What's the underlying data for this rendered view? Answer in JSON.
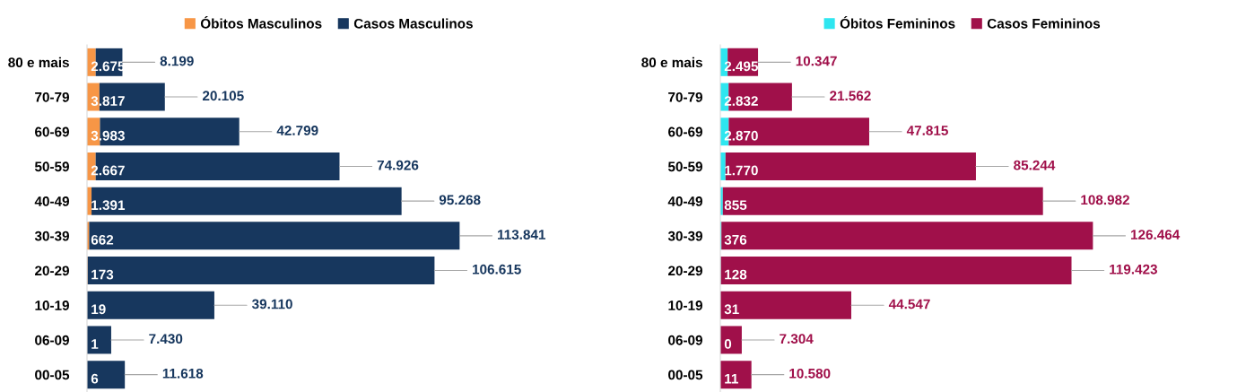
{
  "chart_data": [
    {
      "type": "bar",
      "orientation": "horizontal",
      "stacked": true,
      "legend": "top",
      "grid": false,
      "categories": [
        "80 e mais",
        "70-79",
        "60-69",
        "50-59",
        "40-49",
        "30-39",
        "20-29",
        "10-19",
        "06-09",
        "00-05"
      ],
      "series": [
        {
          "name": "Óbitos Masculinos",
          "color": "#f79646",
          "values": [
            2675,
            3817,
            3983,
            2667,
            1391,
            662,
            173,
            19,
            1,
            6
          ],
          "value_labels": [
            "2.675",
            "3.817",
            "3.983",
            "2.667",
            "1.391",
            "662",
            "173",
            "19",
            "1",
            "6"
          ]
        },
        {
          "name": "Casos Masculinos",
          "color": "#17375e",
          "values": [
            8199,
            20105,
            42799,
            74926,
            95268,
            113841,
            106615,
            39110,
            7430,
            11618
          ],
          "value_labels": [
            "8.199",
            "20.105",
            "42.799",
            "74.926",
            "95.268",
            "113.841",
            "106.615",
            "39.110",
            "7.430",
            "11.618"
          ]
        }
      ]
    },
    {
      "type": "bar",
      "orientation": "horizontal",
      "stacked": true,
      "legend": "top",
      "grid": false,
      "categories": [
        "80 e mais",
        "70-79",
        "60-69",
        "50-59",
        "40-49",
        "30-39",
        "20-29",
        "10-19",
        "06-09",
        "00-05"
      ],
      "series": [
        {
          "name": "Óbitos Femininos",
          "color": "#2ee6f0",
          "values": [
            2495,
            2832,
            2870,
            1770,
            855,
            376,
            128,
            31,
            0,
            11
          ],
          "value_labels": [
            "2.495",
            "2.832",
            "2.870",
            "1.770",
            "855",
            "376",
            "128",
            "31",
            "0",
            "11"
          ]
        },
        {
          "name": "Casos Femininos",
          "color": "#a0104a",
          "values": [
            10347,
            21562,
            47815,
            85244,
            108982,
            126464,
            119423,
            44547,
            7304,
            10580
          ],
          "value_labels": [
            "10.347",
            "21.562",
            "47.815",
            "85.244",
            "108.982",
            "126.464",
            "119.423",
            "44.547",
            "7.304",
            "10.580"
          ]
        }
      ]
    }
  ]
}
